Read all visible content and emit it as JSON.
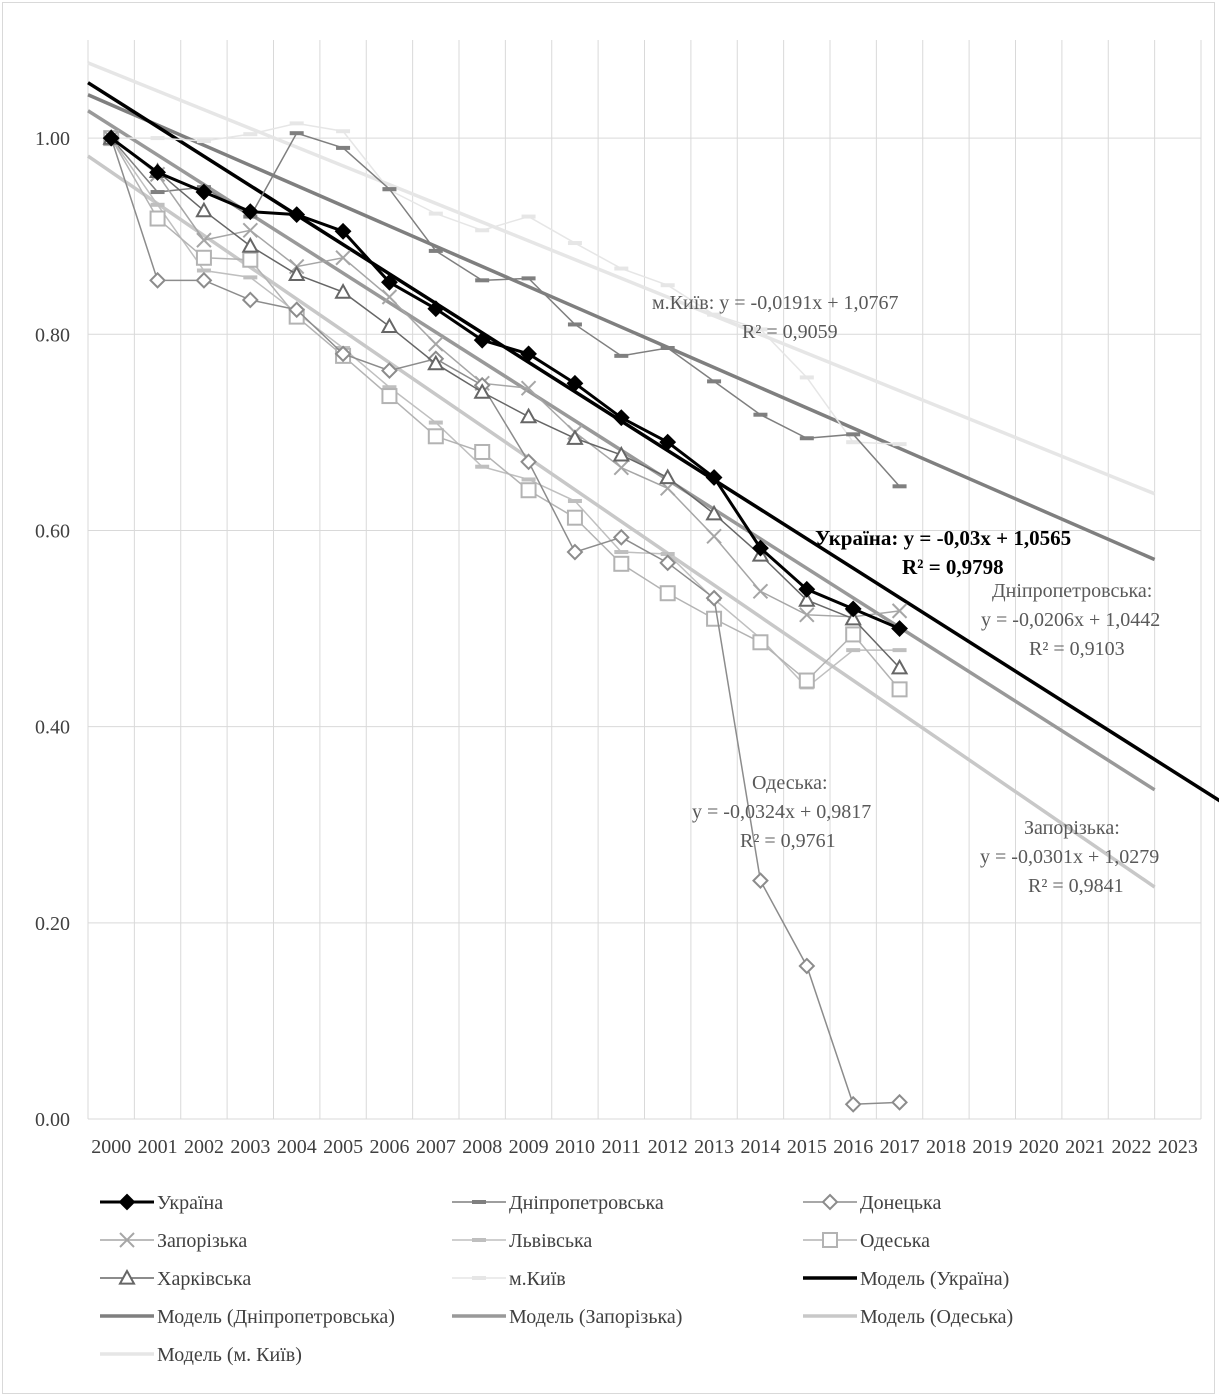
{
  "chart_data": {
    "type": "line",
    "x": [
      2000,
      2001,
      2002,
      2003,
      2004,
      2005,
      2006,
      2007,
      2008,
      2009,
      2010,
      2011,
      2012,
      2013,
      2014,
      2015,
      2016,
      2017
    ],
    "x_axis_ticks": [
      "2000",
      "2001",
      "2002",
      "2003",
      "2004",
      "2005",
      "2006",
      "2007",
      "2008",
      "2009",
      "2010",
      "2011",
      "2012",
      "2013",
      "2014",
      "2015",
      "2016",
      "2017",
      "2018",
      "2019",
      "2020",
      "2021",
      "2022",
      "2023"
    ],
    "y_axis_ticks": [
      "0.00",
      "0.20",
      "0.40",
      "0.60",
      "0.80",
      "1.00"
    ],
    "ylim": [
      0,
      1.1
    ],
    "grid": true,
    "legend_position": "bottom",
    "series": [
      {
        "name": "Україна",
        "color": "#000000",
        "marker": "diamond-filled",
        "values": [
          1.0,
          0.965,
          0.945,
          0.925,
          0.922,
          0.905,
          0.853,
          0.826,
          0.794,
          0.78,
          0.75,
          0.715,
          0.69,
          0.654,
          0.582,
          0.54,
          0.52,
          0.5
        ]
      },
      {
        "name": "Дніпропетровська",
        "color": "#7f7f7f",
        "marker": "dash",
        "values": [
          1.0,
          0.945,
          0.95,
          0.92,
          1.005,
          0.99,
          0.948,
          0.885,
          0.855,
          0.857,
          0.81,
          0.778,
          0.786,
          0.752,
          0.718,
          0.694,
          0.698,
          0.645
        ]
      },
      {
        "name": "Донецька",
        "color": "#8c8c8c",
        "marker": "diamond-open",
        "values": [
          1.0,
          0.855,
          0.855,
          0.835,
          0.825,
          0.78,
          0.763,
          0.775,
          0.748,
          0.67,
          0.578,
          0.593,
          0.567,
          0.531,
          0.243,
          0.156,
          0.015,
          0.017
        ]
      },
      {
        "name": "Запорізька",
        "color": "#a6a6a6",
        "marker": "x",
        "values": [
          1.0,
          0.963,
          0.896,
          0.906,
          0.869,
          0.878,
          0.838,
          0.79,
          0.75,
          0.745,
          0.7,
          0.664,
          0.643,
          0.594,
          0.538,
          0.514,
          0.512,
          0.518
        ]
      },
      {
        "name": "Львівська",
        "color": "#bfbfbf",
        "marker": "dash",
        "values": [
          1.0,
          0.932,
          0.865,
          0.858,
          0.822,
          0.786,
          0.746,
          0.71,
          0.665,
          0.652,
          0.63,
          0.578,
          0.576,
          0.53,
          0.49,
          0.44,
          0.478,
          0.478
        ]
      },
      {
        "name": "Одеська",
        "color": "#b3b3b3",
        "marker": "square-open",
        "values": [
          1.0,
          0.918,
          0.878,
          0.876,
          0.818,
          0.778,
          0.737,
          0.696,
          0.68,
          0.641,
          0.613,
          0.566,
          0.536,
          0.51,
          0.486,
          0.447,
          0.494,
          0.438
        ]
      },
      {
        "name": "Харківська",
        "color": "#666666",
        "marker": "triangle-open",
        "values": [
          1.0,
          0.966,
          0.926,
          0.89,
          0.861,
          0.843,
          0.808,
          0.77,
          0.741,
          0.716,
          0.694,
          0.677,
          0.654,
          0.617,
          0.575,
          0.529,
          0.51,
          0.46
        ]
      },
      {
        "name": "м.Київ",
        "color": "#e6e6e6",
        "marker": "dash",
        "values": [
          1.0,
          1.0,
          0.997,
          1.004,
          1.015,
          1.007,
          0.947,
          0.923,
          0.906,
          0.92,
          0.893,
          0.867,
          0.85,
          0.82,
          0.805,
          0.756,
          0.69,
          0.688
        ]
      }
    ],
    "trendlines": [
      {
        "name": "Модель (Україна)",
        "color": "#000000",
        "slope": -0.03,
        "intercept": 1.0565,
        "x_from": 0,
        "x_to": 24.5,
        "equation": "Україна: y = -0,03x + 1,0565",
        "r2": "R² = 0,9798"
      },
      {
        "name": "Модель (Дніпропетровська)",
        "color": "#7f7f7f",
        "slope": -0.0206,
        "intercept": 1.0442,
        "x_from": 0,
        "x_to": 23,
        "label": "Дніпропетровська:",
        "equation": "y = -0,0206x + 1,0442",
        "r2": "R² = 0,9103"
      },
      {
        "name": "Модель (Запорізька)",
        "color": "#999999",
        "slope": -0.0301,
        "intercept": 1.0279,
        "x_from": 0,
        "x_to": 23,
        "label": "Запорізька:",
        "equation": "y = -0,0301x + 1,0279",
        "r2": "R² = 0,9841"
      },
      {
        "name": "Модель (Одеська)",
        "color": "#c8c8c8",
        "slope": -0.0324,
        "intercept": 0.9817,
        "x_from": 0,
        "x_to": 23,
        "label": "Одеська:",
        "equation": "y = -0,0324x + 0,9817",
        "r2": "R² = 0,9761"
      },
      {
        "name": "Модель (м. Київ)",
        "color": "#e6e6e6",
        "slope": -0.0191,
        "intercept": 1.0767,
        "x_from": 0,
        "x_to": 23,
        "equation": "м.Київ: y = -0,0191x + 1,0767",
        "r2": "R² = 0,9059"
      }
    ]
  }
}
